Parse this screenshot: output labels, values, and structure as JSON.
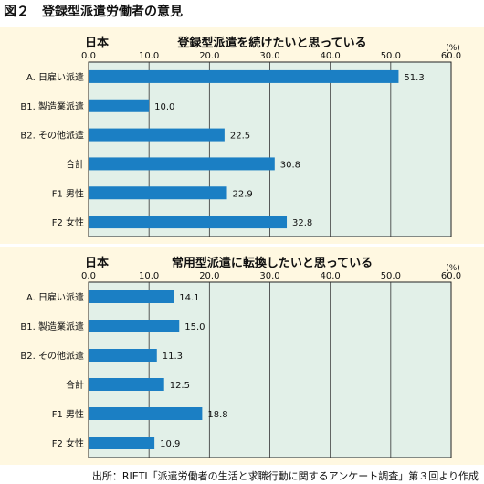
{
  "figure": {
    "title": "図２　登録型派遣労働者の意見",
    "source": "出所：RIETI「派遣労働者の生活と求職行動に関するアンケート調査」第３回より作成"
  },
  "chart_data": [
    {
      "type": "bar",
      "orientation": "horizontal",
      "region": "日本",
      "title": "登録型派遣を続けたいと思っている",
      "unit": "(%)",
      "categories": [
        "A. 日雇い派遣",
        "B1. 製造業派遣",
        "B2. その他派遣",
        "合計",
        "F1 男性",
        "F2 女性"
      ],
      "values": [
        51.3,
        10.0,
        22.5,
        30.8,
        22.9,
        32.8
      ],
      "value_labels": [
        "51.3",
        "10.0",
        "22.5",
        "30.8",
        "22.9",
        "32.8"
      ],
      "xlim": [
        0,
        60
      ],
      "ticks": [
        "0.0",
        "10.0",
        "20.0",
        "30.0",
        "40.0",
        "50.0",
        "60.0"
      ],
      "grid": true,
      "bar_color": "#1b7fc4",
      "plot_bg": "#e2f0e8",
      "panel_bg": "#fff8e1"
    },
    {
      "type": "bar",
      "orientation": "horizontal",
      "region": "日本",
      "title": "常用型派遣に転換したいと思っている",
      "unit": "(%)",
      "categories": [
        "A. 日雇い派遣",
        "B1. 製造業派遣",
        "B2. その他派遣",
        "合計",
        "F1 男性",
        "F2 女性"
      ],
      "values": [
        14.1,
        15.0,
        11.3,
        12.5,
        18.8,
        10.9
      ],
      "value_labels": [
        "14.1",
        "15.0",
        "11.3",
        "12.5",
        "18.8",
        "10.9"
      ],
      "xlim": [
        0,
        60
      ],
      "ticks": [
        "0.0",
        "10.0",
        "20.0",
        "30.0",
        "40.0",
        "50.0",
        "60.0"
      ],
      "grid": true,
      "bar_color": "#1b7fc4",
      "plot_bg": "#e2f0e8",
      "panel_bg": "#fff8e1"
    }
  ]
}
